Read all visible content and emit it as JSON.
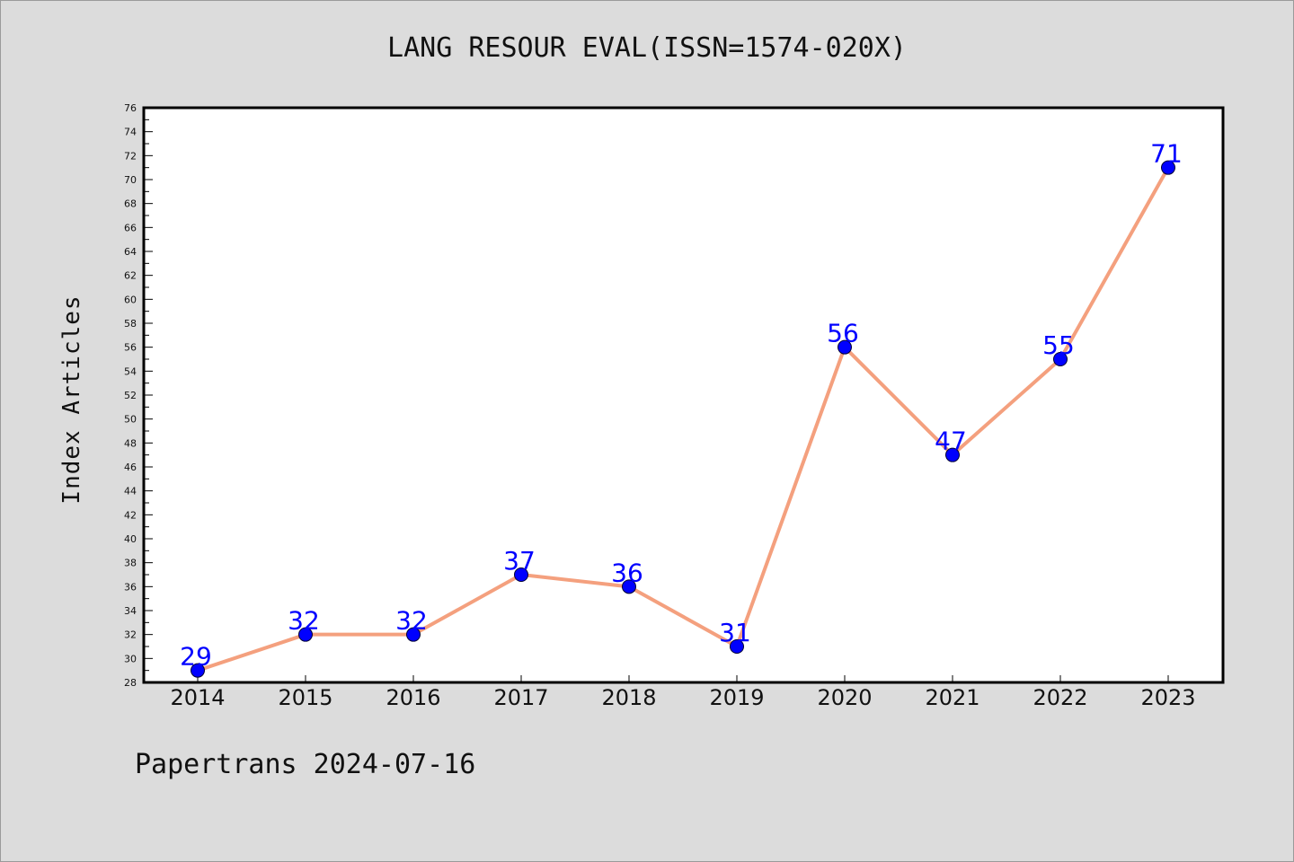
{
  "title": "LANG RESOUR EVAL(ISSN=1574-020X)",
  "footer": "Papertrans 2024-07-16",
  "colors": {
    "background": "#dcdcdc",
    "line": "#f4a07e",
    "marker": "#0000ff",
    "data_label": "#0000ff"
  },
  "chart_data": {
    "type": "line",
    "title": "LANG RESOUR EVAL(ISSN=1574-020X)",
    "xlabel": "",
    "ylabel": "Index Articles",
    "categories": [
      "2014",
      "2015",
      "2016",
      "2017",
      "2018",
      "2019",
      "2020",
      "2021",
      "2022",
      "2023"
    ],
    "values": [
      29,
      32,
      32,
      37,
      36,
      31,
      56,
      47,
      55,
      71
    ],
    "ylim": [
      28,
      76
    ],
    "y_major_step": 2,
    "y_minor_step": 1,
    "grid": false,
    "data_labels": true
  }
}
